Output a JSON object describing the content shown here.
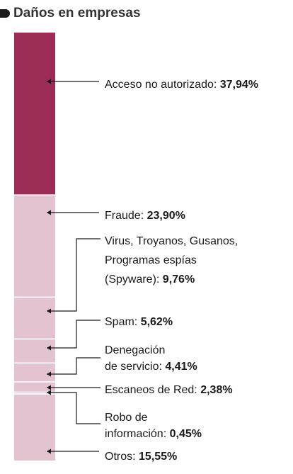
{
  "header": {
    "title": "Daños en empresas"
  },
  "colors": {
    "highlight": "#9b2c55",
    "segment": "#e2c3cf",
    "separator": "#ffffff",
    "leader": "#1a1a1a"
  },
  "chart_data": {
    "type": "stacked-bar",
    "title": "Daños en empresas",
    "unit": "%",
    "segments": [
      {
        "label": "Acceso no autorizado:",
        "value": 37.94,
        "display": "37,94%",
        "highlight": true,
        "lines": [
          "Acceso no autorizado: "
        ]
      },
      {
        "label": "Fraude:",
        "value": 23.9,
        "display": "23,90%",
        "lines": [
          "Fraude: "
        ]
      },
      {
        "label": "Virus, Troyanos, Gusanos, Programas espías (Spyware):",
        "value": 9.76,
        "display": "9,76%",
        "lines": [
          "Virus, Troyanos, Gusanos,",
          "Programas espías",
          "(Spyware): "
        ]
      },
      {
        "label": "Spam:",
        "value": 5.62,
        "display": "5,62%",
        "lines": [
          "Spam: "
        ]
      },
      {
        "label": "Denegación de servicio:",
        "value": 4.41,
        "display": "4,41%",
        "lines": [
          "Denegación",
          "de servicio: "
        ]
      },
      {
        "label": "Escaneos de Red:",
        "value": 2.38,
        "display": "2,38%",
        "lines": [
          "Escaneos de Red: "
        ]
      },
      {
        "label": "Robo de información:",
        "value": 0.45,
        "display": "0,45%",
        "lines": [
          "Robo de",
          "información: "
        ]
      },
      {
        "label": "Otros:",
        "value": 15.55,
        "display": "15,55%",
        "lines": [
          "Otros: "
        ]
      }
    ]
  }
}
